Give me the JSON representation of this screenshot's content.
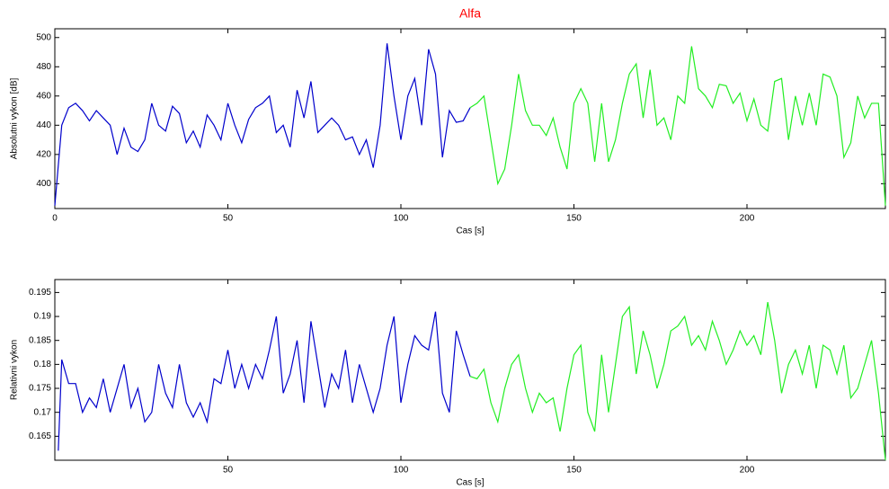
{
  "chart_data": [
    {
      "type": "line",
      "title": "Alfa",
      "xlabel": "Cas [s]",
      "ylabel": "Absolutni vykon [dB]",
      "xlim": [
        0,
        240
      ],
      "ylim": [
        383,
        506
      ],
      "xticks": [
        0,
        50,
        100,
        150,
        200
      ],
      "yticks": [
        400,
        420,
        440,
        460,
        480,
        500
      ],
      "series": [
        {
          "color": "#0000cc",
          "x": [
            0,
            2,
            4,
            6,
            8,
            10,
            12,
            14,
            16,
            18,
            20,
            22,
            24,
            26,
            28,
            30,
            32,
            34,
            36,
            38,
            40,
            42,
            44,
            46,
            48,
            50,
            52,
            54,
            56,
            58,
            60,
            62,
            64,
            66,
            68,
            70,
            72,
            74,
            76,
            78,
            80,
            82,
            84,
            86,
            88,
            90,
            92,
            94,
            96,
            98,
            100,
            102,
            104,
            106,
            108,
            110,
            112,
            114,
            116,
            118,
            120
          ],
          "values": [
            385,
            440,
            452,
            455,
            450,
            443,
            450,
            445,
            440,
            420,
            438,
            425,
            422,
            430,
            455,
            440,
            436,
            453,
            448,
            428,
            436,
            425,
            447,
            440,
            430,
            455,
            440,
            428,
            444,
            452,
            455,
            460,
            435,
            440,
            425,
            464,
            445,
            470,
            435,
            440,
            445,
            440,
            430,
            432,
            420,
            430,
            411,
            440,
            496,
            460,
            430,
            460,
            472,
            440,
            492,
            475,
            418,
            450,
            442,
            443,
            452
          ]
        },
        {
          "color": "#22ee22",
          "x": [
            120,
            122,
            124,
            126,
            128,
            130,
            132,
            134,
            136,
            138,
            140,
            142,
            144,
            146,
            148,
            150,
            152,
            154,
            156,
            158,
            160,
            162,
            164,
            166,
            168,
            170,
            172,
            174,
            176,
            178,
            180,
            182,
            184,
            186,
            188,
            190,
            192,
            194,
            196,
            198,
            200,
            202,
            204,
            206,
            208,
            210,
            212,
            214,
            216,
            218,
            220,
            222,
            224,
            226,
            228,
            230,
            232,
            234,
            236,
            238,
            240
          ],
          "values": [
            452,
            455,
            460,
            430,
            400,
            410,
            440,
            475,
            450,
            440,
            440,
            433,
            445,
            425,
            410,
            455,
            465,
            455,
            415,
            455,
            415,
            430,
            455,
            475,
            482,
            445,
            478,
            440,
            445,
            430,
            460,
            455,
            494,
            465,
            460,
            452,
            468,
            467,
            455,
            462,
            443,
            458,
            440,
            436,
            470,
            472,
            430,
            460,
            440,
            462,
            440,
            475,
            473,
            460,
            418,
            428,
            460,
            445,
            455,
            455,
            385
          ]
        }
      ]
    },
    {
      "type": "line",
      "xlabel": "Cas [s]",
      "ylabel": "Relativni vykon",
      "xlim": [
        0,
        240
      ],
      "ylim": [
        0.16,
        0.1977
      ],
      "xticks": [
        50,
        100,
        150,
        200
      ],
      "yticks": [
        0.165,
        0.17,
        0.175,
        0.18,
        0.185,
        0.19,
        0.195
      ],
      "series": [
        {
          "color": "#0000cc",
          "x": [
            1,
            2,
            4,
            6,
            8,
            10,
            12,
            14,
            16,
            18,
            20,
            22,
            24,
            26,
            28,
            30,
            32,
            34,
            36,
            38,
            40,
            42,
            44,
            46,
            48,
            50,
            52,
            54,
            56,
            58,
            60,
            62,
            64,
            66,
            68,
            70,
            72,
            74,
            76,
            78,
            80,
            82,
            84,
            86,
            88,
            90,
            92,
            94,
            96,
            98,
            100,
            102,
            104,
            106,
            108,
            110,
            112,
            114,
            116,
            118,
            120
          ],
          "values": [
            0.162,
            0.181,
            0.176,
            0.176,
            0.17,
            0.173,
            0.171,
            0.177,
            0.17,
            0.175,
            0.18,
            0.171,
            0.175,
            0.168,
            0.17,
            0.18,
            0.174,
            0.171,
            0.18,
            0.172,
            0.169,
            0.172,
            0.168,
            0.177,
            0.176,
            0.183,
            0.175,
            0.18,
            0.175,
            0.18,
            0.177,
            0.183,
            0.19,
            0.174,
            0.178,
            0.185,
            0.172,
            0.189,
            0.18,
            0.171,
            0.178,
            0.175,
            0.183,
            0.172,
            0.18,
            0.175,
            0.17,
            0.175,
            0.184,
            0.19,
            0.172,
            0.18,
            0.186,
            0.184,
            0.183,
            0.191,
            0.174,
            0.17,
            0.187,
            0.182,
            0.1775
          ]
        },
        {
          "color": "#22ee22",
          "x": [
            120,
            122,
            124,
            126,
            128,
            130,
            132,
            134,
            136,
            138,
            140,
            142,
            144,
            146,
            148,
            150,
            152,
            154,
            156,
            158,
            160,
            162,
            164,
            166,
            168,
            170,
            172,
            174,
            176,
            178,
            180,
            182,
            184,
            186,
            188,
            190,
            192,
            194,
            196,
            198,
            200,
            202,
            204,
            206,
            208,
            210,
            212,
            214,
            216,
            218,
            220,
            222,
            224,
            226,
            228,
            230,
            232,
            234,
            236,
            238,
            240
          ],
          "values": [
            0.1775,
            0.177,
            0.179,
            0.172,
            0.168,
            0.175,
            0.18,
            0.182,
            0.175,
            0.17,
            0.174,
            0.172,
            0.173,
            0.166,
            0.175,
            0.182,
            0.184,
            0.17,
            0.166,
            0.182,
            0.17,
            0.18,
            0.19,
            0.192,
            0.178,
            0.187,
            0.182,
            0.175,
            0.18,
            0.187,
            0.188,
            0.19,
            0.184,
            0.186,
            0.183,
            0.189,
            0.185,
            0.18,
            0.183,
            0.187,
            0.184,
            0.186,
            0.182,
            0.193,
            0.185,
            0.174,
            0.18,
            0.183,
            0.178,
            0.184,
            0.175,
            0.184,
            0.183,
            0.178,
            0.184,
            0.173,
            0.175,
            0.18,
            0.185,
            0.174,
            0.16
          ]
        }
      ]
    }
  ]
}
